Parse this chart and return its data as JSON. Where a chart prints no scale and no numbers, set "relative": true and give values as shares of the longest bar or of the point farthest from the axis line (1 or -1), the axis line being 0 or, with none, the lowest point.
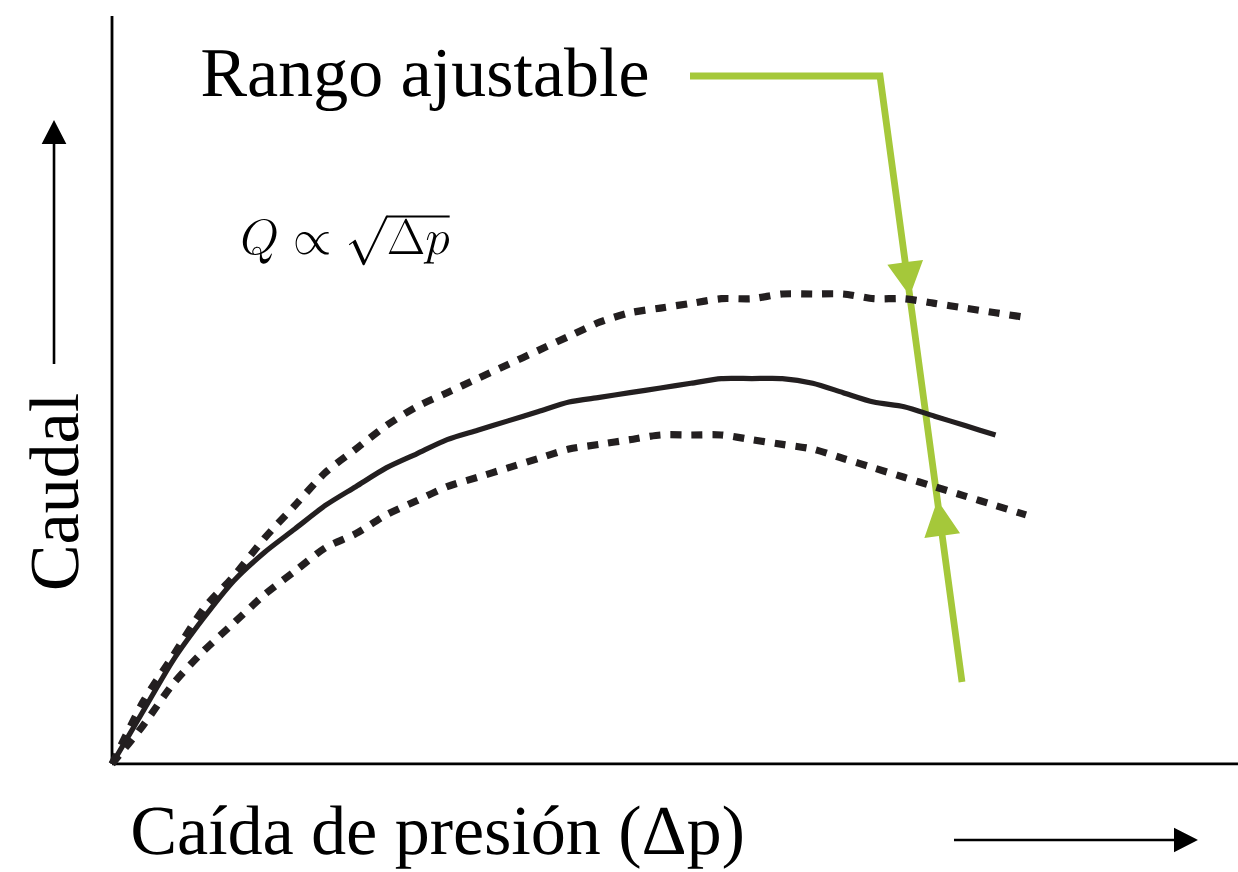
{
  "chart_data": {
    "type": "line",
    "relative": true,
    "xlabel": "Caída de presión (Δp)",
    "ylabel": "Caudal",
    "annotations": [
      "Rango ajustable",
      "Q \\propto \\sqrt{\\Delta p}"
    ],
    "categories": [
      null,
      null,
      null,
      null,
      null,
      null,
      null,
      null,
      null,
      null,
      null,
      null,
      null,
      null,
      null,
      null,
      null,
      null,
      null,
      null,
      null,
      null,
      null,
      null,
      null,
      null,
      null,
      null,
      null,
      null,
      null
    ],
    "series": [
      {
        "color": "#231f20",
        "line_style": "dotted",
        "values": [
          0,
          0.13,
          0.23,
          0.33,
          0.4,
          0.48,
          0.55,
          0.62,
          0.67,
          0.72,
          0.76,
          0.79,
          0.82,
          0.85,
          0.88,
          0.91,
          0.94,
          0.96,
          0.97,
          0.98,
          0.99,
          0.99,
          1,
          1,
          1,
          0.99,
          0.99,
          0.98,
          0.97,
          0.96,
          0.95
        ]
      },
      {
        "color": "#231f20",
        "line_style": "solid",
        "values": [
          0,
          0.11,
          0.22,
          0.31,
          0.39,
          0.45,
          0.5,
          0.55,
          0.59,
          0.63,
          0.66,
          0.69,
          0.71,
          0.73,
          0.75,
          0.77,
          0.78,
          0.79,
          0.8,
          0.81,
          0.82,
          0.82,
          0.82,
          0.81,
          0.79,
          0.77,
          0.76,
          0.74,
          0.72,
          0.7,
          null
        ]
      },
      {
        "color": "#231f20",
        "line_style": "dotted",
        "values": [
          0,
          0.08,
          0.17,
          0.24,
          0.3,
          0.36,
          0.41,
          0.46,
          0.49,
          0.53,
          0.56,
          0.59,
          0.61,
          0.63,
          0.65,
          0.67,
          0.68,
          0.69,
          0.7,
          0.7,
          0.7,
          0.69,
          0.68,
          0.67,
          0.65,
          0.63,
          0.61,
          0.59,
          0.57,
          0.55,
          0.53
        ]
      }
    ]
  }
}
